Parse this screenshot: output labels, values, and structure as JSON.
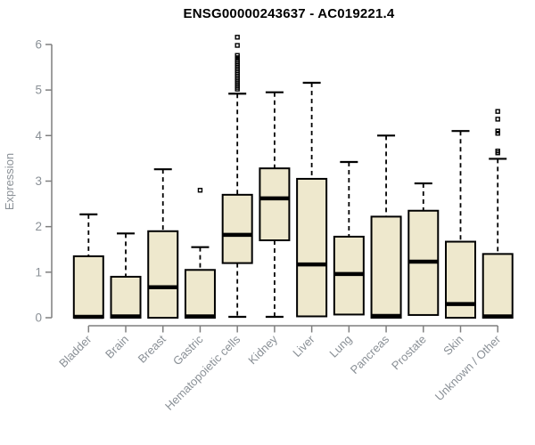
{
  "chart_data": {
    "type": "boxplot",
    "title": "ENSG00000243637 - AC019221.4",
    "xlabel": "",
    "ylabel": "Expression",
    "ylim": [
      0,
      6.2
    ],
    "yticks": [
      0,
      1,
      2,
      3,
      4,
      5,
      6
    ],
    "grid": false,
    "legend": false,
    "categories": [
      "Bladder",
      "Brain",
      "Breast",
      "Gastric",
      "Hematopoietic cells",
      "Kidney",
      "Liver",
      "Lung",
      "Pancreas",
      "Prostate",
      "Skin",
      "Unknown / Other"
    ],
    "boxes": [
      {
        "category": "Bladder",
        "whisker_low": 0,
        "q1": 0,
        "median": 0.02,
        "q3": 1.35,
        "whisker_high": 2.27,
        "outliers": []
      },
      {
        "category": "Brain",
        "whisker_low": 0,
        "q1": 0,
        "median": 0.03,
        "q3": 0.9,
        "whisker_high": 1.85,
        "outliers": []
      },
      {
        "category": "Breast",
        "whisker_low": 0,
        "q1": 0,
        "median": 0.67,
        "q3": 1.9,
        "whisker_high": 3.26,
        "outliers": []
      },
      {
        "category": "Gastric",
        "whisker_low": 0,
        "q1": 0,
        "median": 0.03,
        "q3": 1.05,
        "whisker_high": 1.55,
        "outliers": [
          2.8
        ]
      },
      {
        "category": "Hematopoietic cells",
        "whisker_low": 0.02,
        "q1": 1.2,
        "median": 1.82,
        "q3": 2.7,
        "whisker_high": 4.92,
        "outliers": [
          5.02,
          5.06,
          5.1,
          5.14,
          5.18,
          5.22,
          5.26,
          5.3,
          5.34,
          5.38,
          5.42,
          5.46,
          5.5,
          5.54,
          5.58,
          5.62,
          5.66,
          5.71,
          5.76,
          5.98,
          6.16
        ]
      },
      {
        "category": "Kidney",
        "whisker_low": 0.02,
        "q1": 1.7,
        "median": 2.62,
        "q3": 3.28,
        "whisker_high": 4.95,
        "outliers": []
      },
      {
        "category": "Liver",
        "whisker_low": 0.03,
        "q1": 0.03,
        "median": 1.17,
        "q3": 3.05,
        "whisker_high": 5.16,
        "outliers": []
      },
      {
        "category": "Lung",
        "whisker_low": 0.07,
        "q1": 0.07,
        "median": 0.96,
        "q3": 1.78,
        "whisker_high": 3.42,
        "outliers": []
      },
      {
        "category": "Pancreas",
        "whisker_low": 0,
        "q1": 0,
        "median": 0.04,
        "q3": 2.22,
        "whisker_high": 4.0,
        "outliers": []
      },
      {
        "category": "Prostate",
        "whisker_low": 0.06,
        "q1": 0.06,
        "median": 1.23,
        "q3": 2.35,
        "whisker_high": 2.95,
        "outliers": []
      },
      {
        "category": "Skin",
        "whisker_low": 0,
        "q1": 0,
        "median": 0.3,
        "q3": 1.67,
        "whisker_high": 4.1,
        "outliers": []
      },
      {
        "category": "Unknown / Other",
        "whisker_low": 0,
        "q1": 0,
        "median": 0.03,
        "q3": 1.4,
        "whisker_high": 3.49,
        "outliers": [
          3.62,
          3.66,
          4.05,
          4.1,
          4.36,
          4.53
        ]
      }
    ],
    "colors": {
      "box_fill": "#EEE8CD",
      "box_border": "#000000",
      "median": "#000000",
      "whisker": "#000000",
      "outlier": "#000000",
      "axis": "#7f7f7f",
      "axis_text": "#8a9096",
      "title": "#000000",
      "background": "#ffffff"
    }
  }
}
